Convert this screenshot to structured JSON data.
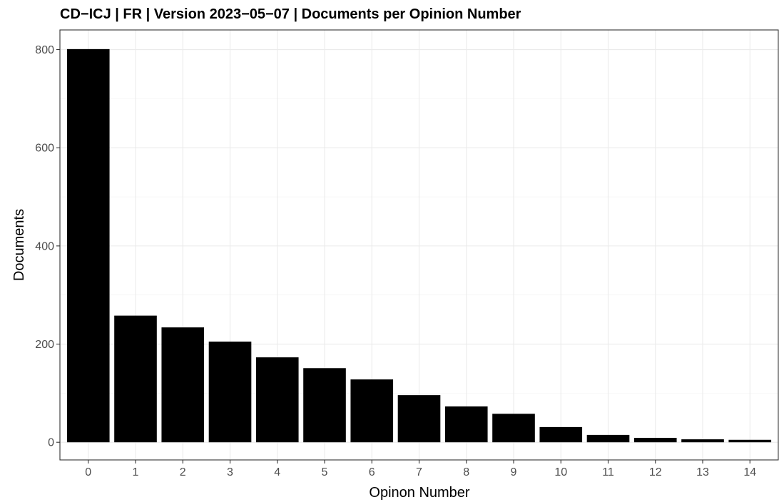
{
  "chart_data": {
    "type": "bar",
    "title": "CD−ICJ | FR | Version 2023−05−07 | Documents per Opinion Number",
    "xlabel": "Opinon Number",
    "ylabel": "Documents",
    "categories": [
      "0",
      "1",
      "2",
      "3",
      "4",
      "5",
      "6",
      "7",
      "8",
      "9",
      "10",
      "11",
      "12",
      "13",
      "14"
    ],
    "values": [
      801,
      258,
      234,
      205,
      173,
      151,
      128,
      96,
      73,
      58,
      31,
      15,
      9,
      6,
      5
    ],
    "ylim": [
      -36,
      840
    ],
    "y_ticks": [
      0,
      200,
      400,
      600,
      800
    ],
    "grid": true,
    "bar_color": "#000000",
    "theme": "bw"
  }
}
